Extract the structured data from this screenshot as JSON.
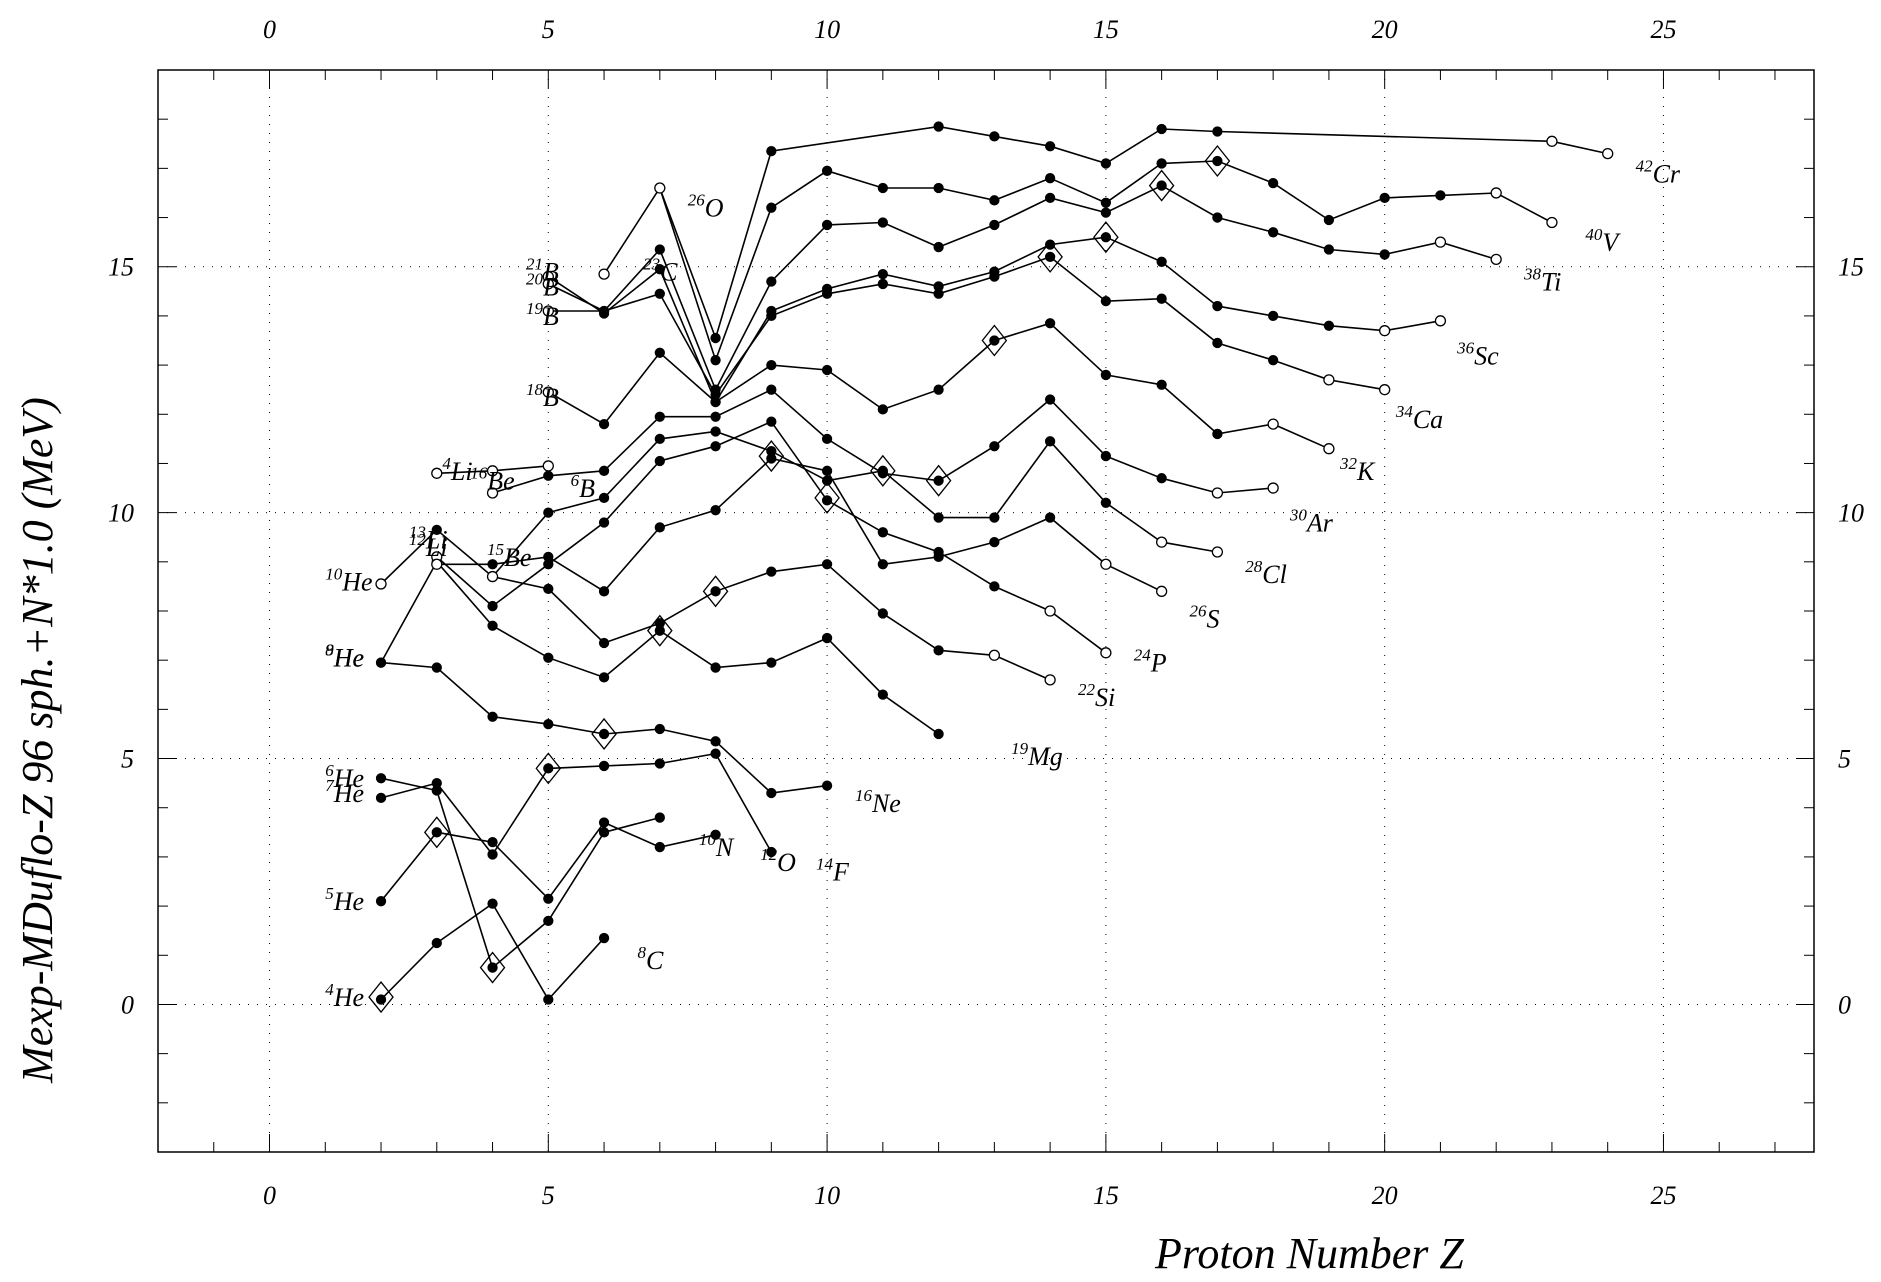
{
  "chart_data": {
    "type": "line",
    "xlabel": "Proton Number  Z",
    "ylabel": "Mexp-MDuflo-Z 96 sph.+N*1.0 (MeV)",
    "xlim": [
      -2,
      27.7
    ],
    "ylim": [
      -3,
      19
    ],
    "x_ticks": [
      0,
      5,
      10,
      15,
      20,
      25
    ],
    "y_ticks": [
      0,
      5,
      10,
      15
    ],
    "grid": true,
    "series": [
      {
        "name": "4He",
        "points": [
          [
            2,
            0.1
          ],
          [
            3,
            1.25
          ],
          [
            4,
            2.05
          ],
          [
            5,
            0.1
          ],
          [
            6,
            1.35
          ]
        ],
        "marker": "filled"
      },
      {
        "name": "5He",
        "points": [
          [
            2,
            2.1
          ],
          [
            3,
            3.5
          ],
          [
            4,
            3.3
          ],
          [
            5,
            2.15
          ],
          [
            6,
            3.7
          ],
          [
            7,
            3.2
          ],
          [
            8,
            3.45
          ]
        ],
        "marker": "filled"
      },
      {
        "name": "6He",
        "points": [
          [
            2,
            4.6
          ],
          [
            3,
            4.35
          ],
          [
            4,
            0.75
          ],
          [
            5,
            1.7
          ],
          [
            6,
            3.5
          ],
          [
            7,
            3.8
          ]
        ],
        "marker": "filled"
      },
      {
        "name": "7He",
        "points": [
          [
            2,
            4.2
          ],
          [
            3,
            4.5
          ],
          [
            4,
            3.05
          ],
          [
            5,
            4.8
          ],
          [
            6,
            4.85
          ],
          [
            7,
            4.9
          ],
          [
            8,
            5.1
          ],
          [
            9,
            3.1
          ]
        ],
        "marker": "filled"
      },
      {
        "name": "8He",
        "points": [
          [
            2,
            6.95
          ],
          [
            3,
            6.85
          ],
          [
            4,
            5.85
          ],
          [
            5,
            5.7
          ],
          [
            6,
            5.5
          ],
          [
            7,
            5.6
          ],
          [
            8,
            5.35
          ],
          [
            9,
            4.3
          ],
          [
            10,
            4.45
          ]
        ],
        "marker": "filled"
      },
      {
        "name": "9He",
        "points": [
          [
            2,
            6.95
          ],
          [
            3,
            9.0
          ],
          [
            4,
            7.7
          ],
          [
            5,
            7.05
          ],
          [
            6,
            6.65
          ],
          [
            7,
            7.6
          ],
          [
            8,
            6.85
          ],
          [
            9,
            6.95
          ],
          [
            10,
            7.45
          ],
          [
            11,
            6.3
          ],
          [
            12,
            5.5
          ]
        ],
        "marker": "filled"
      },
      {
        "name": "10He",
        "points": [
          [
            2,
            8.55
          ],
          [
            3,
            9.65
          ],
          [
            4,
            8.7
          ],
          [
            5,
            8.45
          ],
          [
            6,
            7.35
          ],
          [
            7,
            7.75
          ],
          [
            8,
            8.4
          ],
          [
            9,
            8.8
          ],
          [
            10,
            8.95
          ],
          [
            11,
            7.95
          ],
          [
            12,
            7.2
          ],
          [
            13,
            7.1
          ],
          [
            14,
            6.6
          ]
        ],
        "marker": "mixed"
      },
      {
        "name": "12Li",
        "points": [
          [
            3,
            9.1
          ],
          [
            4,
            8.1
          ],
          [
            5,
            8.95
          ],
          [
            6,
            9.8
          ],
          [
            7,
            11.05
          ],
          [
            8,
            11.35
          ],
          [
            9,
            11.85
          ],
          [
            10,
            10.25
          ],
          [
            11,
            9.6
          ],
          [
            12,
            9.2
          ],
          [
            13,
            8.5
          ],
          [
            14,
            8.0
          ],
          [
            15,
            7.15
          ]
        ],
        "marker": "mixed"
      },
      {
        "name": "13Li",
        "points": [
          [
            3,
            8.95
          ],
          [
            4,
            8.95
          ],
          [
            5,
            9.1
          ],
          [
            6,
            8.4
          ],
          [
            7,
            9.7
          ],
          [
            8,
            10.05
          ],
          [
            9,
            11.1
          ],
          [
            10,
            10.85
          ],
          [
            11,
            8.95
          ],
          [
            12,
            9.1
          ],
          [
            13,
            9.4
          ],
          [
            14,
            9.9
          ],
          [
            15,
            8.95
          ],
          [
            16,
            8.4
          ]
        ],
        "marker": "mixed"
      },
      {
        "name": "15Be",
        "points": [
          [
            4,
            8.7
          ],
          [
            5,
            10.0
          ],
          [
            6,
            10.3
          ],
          [
            7,
            11.5
          ],
          [
            8,
            11.65
          ],
          [
            9,
            11.25
          ],
          [
            10,
            10.65
          ],
          [
            11,
            10.85
          ],
          [
            12,
            9.9
          ],
          [
            13,
            9.9
          ],
          [
            14,
            11.45
          ],
          [
            15,
            10.2
          ],
          [
            16,
            9.4
          ],
          [
            17,
            9.2
          ]
        ],
        "marker": "mixed"
      },
      {
        "name": "16Be",
        "points": [
          [
            4,
            10.4
          ],
          [
            5,
            10.75
          ],
          [
            6,
            10.85
          ],
          [
            7,
            11.95
          ],
          [
            8,
            11.95
          ],
          [
            9,
            12.5
          ],
          [
            10,
            11.5
          ],
          [
            11,
            10.8
          ],
          [
            12,
            10.65
          ],
          [
            13,
            11.35
          ],
          [
            14,
            12.3
          ],
          [
            15,
            11.15
          ],
          [
            16,
            10.7
          ],
          [
            17,
            10.4
          ],
          [
            18,
            10.5
          ]
        ],
        "marker": "mixed"
      },
      {
        "name": "4Li",
        "points": [
          [
            3,
            10.8
          ],
          [
            4,
            10.85
          ],
          [
            5,
            10.95
          ]
        ],
        "marker": "open"
      },
      {
        "name": "18B",
        "points": [
          [
            5,
            12.45
          ],
          [
            6,
            11.8
          ],
          [
            7,
            13.25
          ],
          [
            8,
            12.25
          ],
          [
            9,
            13.0
          ],
          [
            10,
            12.9
          ],
          [
            11,
            12.1
          ],
          [
            12,
            12.5
          ],
          [
            13,
            13.5
          ],
          [
            14,
            13.85
          ],
          [
            15,
            12.8
          ],
          [
            16,
            12.6
          ],
          [
            17,
            11.6
          ],
          [
            18,
            11.8
          ],
          [
            19,
            11.3
          ]
        ],
        "marker": "mixed"
      },
      {
        "name": "19B",
        "points": [
          [
            5,
            14.1
          ],
          [
            6,
            14.1
          ],
          [
            7,
            14.45
          ],
          [
            8,
            12.4
          ],
          [
            9,
            14.0
          ],
          [
            10,
            14.45
          ],
          [
            11,
            14.65
          ],
          [
            12,
            14.45
          ],
          [
            13,
            14.8
          ],
          [
            14,
            15.2
          ],
          [
            15,
            14.3
          ],
          [
            16,
            14.35
          ],
          [
            17,
            13.45
          ],
          [
            18,
            13.1
          ],
          [
            19,
            12.7
          ],
          [
            20,
            12.5
          ]
        ],
        "marker": "mixed"
      },
      {
        "name": "20B",
        "points": [
          [
            5,
            14.8
          ],
          [
            6,
            14.05
          ],
          [
            7,
            14.95
          ],
          [
            8,
            12.25
          ],
          [
            9,
            14.1
          ],
          [
            10,
            14.55
          ],
          [
            11,
            14.85
          ],
          [
            12,
            14.6
          ],
          [
            13,
            14.9
          ],
          [
            14,
            15.45
          ],
          [
            15,
            15.6
          ],
          [
            16,
            15.1
          ],
          [
            17,
            14.2
          ],
          [
            18,
            14.0
          ],
          [
            19,
            13.8
          ],
          [
            20,
            13.7
          ],
          [
            21,
            13.9
          ]
        ],
        "marker": "mixed"
      },
      {
        "name": "21B",
        "points": [
          [
            5,
            14.65
          ],
          [
            6,
            14.1
          ],
          [
            7,
            15.35
          ],
          [
            8,
            12.5
          ],
          [
            9,
            14.7
          ],
          [
            10,
            15.85
          ],
          [
            11,
            15.9
          ],
          [
            12,
            15.4
          ],
          [
            13,
            15.85
          ],
          [
            14,
            16.4
          ],
          [
            15,
            16.1
          ],
          [
            16,
            16.65
          ],
          [
            17,
            16.0
          ],
          [
            18,
            15.7
          ],
          [
            19,
            15.35
          ],
          [
            20,
            15.25
          ],
          [
            21,
            15.5
          ],
          [
            22,
            15.15
          ]
        ],
        "marker": "mixed"
      },
      {
        "name": "23C",
        "points": [
          [
            6,
            14.85
          ],
          [
            7,
            16.6
          ],
          [
            8,
            13.1
          ],
          [
            9,
            16.2
          ],
          [
            10,
            16.95
          ],
          [
            11,
            16.6
          ],
          [
            12,
            16.6
          ],
          [
            13,
            16.35
          ],
          [
            14,
            16.8
          ],
          [
            15,
            16.3
          ],
          [
            16,
            17.1
          ],
          [
            17,
            17.15
          ],
          [
            18,
            16.7
          ],
          [
            19,
            15.95
          ],
          [
            20,
            16.4
          ],
          [
            21,
            16.45
          ],
          [
            22,
            16.5
          ],
          [
            23,
            15.9
          ]
        ],
        "marker": "mixed"
      },
      {
        "name": "26O",
        "points": [
          [
            7,
            16.6
          ],
          [
            8,
            13.55
          ],
          [
            9,
            17.35
          ],
          [
            12,
            17.85
          ],
          [
            13,
            17.65
          ],
          [
            14,
            17.45
          ],
          [
            15,
            17.1
          ],
          [
            16,
            17.8
          ],
          [
            17,
            17.75
          ],
          [
            23,
            17.55
          ],
          [
            24,
            17.3
          ]
        ],
        "marker": "mixed"
      }
    ],
    "diamonds": [
      [
        2,
        0.15
      ],
      [
        3,
        3.5
      ],
      [
        4,
        0.75
      ],
      [
        5,
        4.8
      ],
      [
        6,
        5.5
      ],
      [
        7,
        7.6
      ],
      [
        8,
        8.4
      ],
      [
        9,
        11.15
      ],
      [
        10,
        10.3
      ],
      [
        11,
        10.85
      ],
      [
        12,
        10.65
      ],
      [
        13,
        13.5
      ],
      [
        14,
        15.2
      ],
      [
        15,
        15.6
      ],
      [
        16,
        16.65
      ],
      [
        17,
        17.15
      ]
    ],
    "annotations": [
      {
        "mass": "42",
        "sym": "Cr"
      },
      {
        "mass": "40",
        "sym": "V"
      },
      {
        "mass": "38",
        "sym": "Ti"
      },
      {
        "mass": "36",
        "sym": "Sc"
      },
      {
        "mass": "34",
        "sym": "Ca"
      },
      {
        "mass": "32",
        "sym": "K"
      },
      {
        "mass": "30",
        "sym": "Ar"
      },
      {
        "mass": "28",
        "sym": "Cl"
      },
      {
        "mass": "26",
        "sym": "S"
      },
      {
        "mass": "24",
        "sym": "P"
      },
      {
        "mass": "22",
        "sym": "Si"
      },
      {
        "mass": "19",
        "sym": "Mg"
      },
      {
        "mass": "16",
        "sym": "Ne"
      },
      {
        "mass": "14",
        "sym": "F"
      },
      {
        "mass": "12",
        "sym": "O"
      },
      {
        "mass": "10",
        "sym": "N"
      },
      {
        "mass": "8",
        "sym": "C"
      },
      {
        "mass": "26",
        "sym": "O"
      },
      {
        "mass": "23",
        "sym": "C"
      },
      {
        "mass": "21",
        "sym": "B"
      },
      {
        "mass": "20",
        "sym": "B"
      },
      {
        "mass": "19",
        "sym": "B"
      },
      {
        "mass": "18",
        "sym": "B"
      },
      {
        "mass": "4",
        "sym": "Li"
      },
      {
        "mass": "16",
        "sym": "Be"
      },
      {
        "mass": "6",
        "sym": "B"
      },
      {
        "mass": "13",
        "sym": "Li"
      },
      {
        "mass": "12",
        "sym": "Li"
      },
      {
        "mass": "15",
        "sym": "Be"
      },
      {
        "mass": "10",
        "sym": "He"
      },
      {
        "mass": "9",
        "sym": "He"
      },
      {
        "mass": "8",
        "sym": "He"
      },
      {
        "mass": "6",
        "sym": "He"
      },
      {
        "mass": "7",
        "sym": "He"
      },
      {
        "mass": "5",
        "sym": "He"
      },
      {
        "mass": "4",
        "sym": "He"
      }
    ]
  }
}
